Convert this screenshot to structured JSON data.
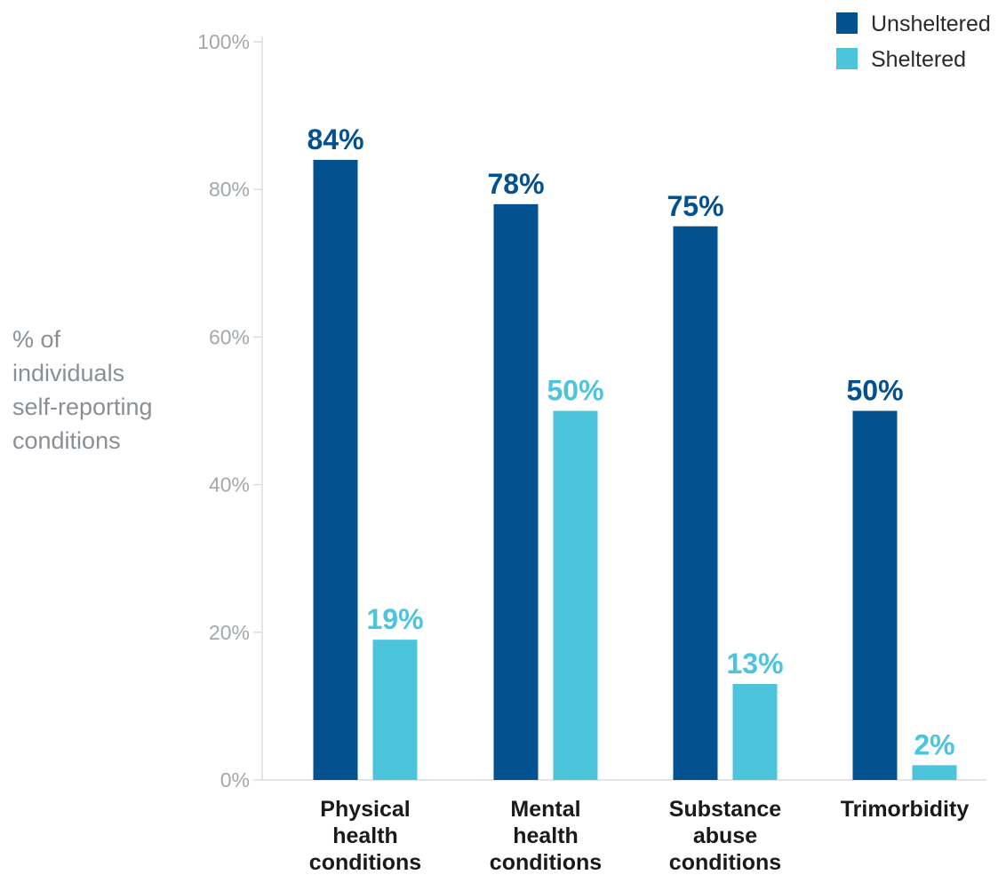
{
  "chart_data": {
    "type": "bar",
    "title": "",
    "ylabel_lines": [
      "% of",
      "individuals",
      "self-reporting",
      "conditions"
    ],
    "xlabel": "",
    "ylim": [
      0,
      100
    ],
    "yticks": [
      "0%",
      "20%",
      "40%",
      "60%",
      "80%",
      "100%"
    ],
    "categories": [
      [
        "Physical",
        "health",
        "conditions"
      ],
      [
        "Mental",
        "health",
        "conditions"
      ],
      [
        "Substance",
        "abuse",
        "conditions"
      ],
      [
        "Trimorbidity"
      ]
    ],
    "series": [
      {
        "name": "Unsheltered",
        "color": "#045190",
        "values": [
          84,
          78,
          75,
          50
        ],
        "labels": [
          "84%",
          "78%",
          "75%",
          "50%"
        ]
      },
      {
        "name": "Sheltered",
        "color": "#4cc4dc",
        "values": [
          19,
          50,
          13,
          2
        ],
        "labels": [
          "19%",
          "50%",
          "13%",
          "2%"
        ]
      }
    ],
    "legend_position": "top-right",
    "grid": false
  }
}
